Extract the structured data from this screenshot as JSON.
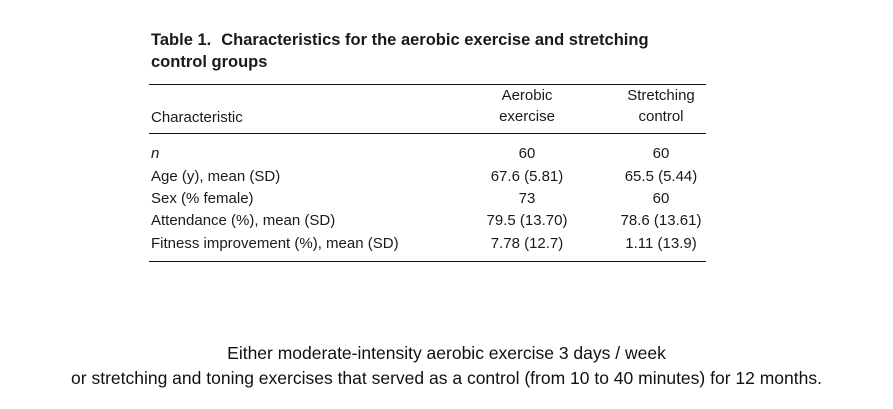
{
  "table": {
    "number": "Table 1.",
    "title_line1": "Characteristics for the aerobic exercise and stretching",
    "title_line2": "control groups",
    "headers": {
      "characteristic": "Characteristic",
      "aerobic_line1": "Aerobic",
      "aerobic_line2": "exercise",
      "stretching_line1": "Stretching",
      "stretching_line2": "control"
    },
    "rows": [
      {
        "label": "n",
        "aerobic": "60",
        "stretching": "60"
      },
      {
        "label": "Age (y), mean (SD)",
        "aerobic": "67.6 (5.81)",
        "stretching": "65.5 (5.44)"
      },
      {
        "label": "Sex (% female)",
        "aerobic": "73",
        "stretching": "60"
      },
      {
        "label": "Attendance (%), mean (SD)",
        "aerobic": "79.5 (13.70)",
        "stretching": "78.6 (13.61)"
      },
      {
        "label": "Fitness improvement (%), mean (SD)",
        "aerobic": "7.78 (12.7)",
        "stretching": "1.11 (13.9)"
      }
    ]
  },
  "caption": {
    "line1": "Either moderate-intensity aerobic exercise 3 days / week",
    "line2": "or stretching and toning exercises that served as a control (from 10 to 40 minutes) for 12 months."
  }
}
